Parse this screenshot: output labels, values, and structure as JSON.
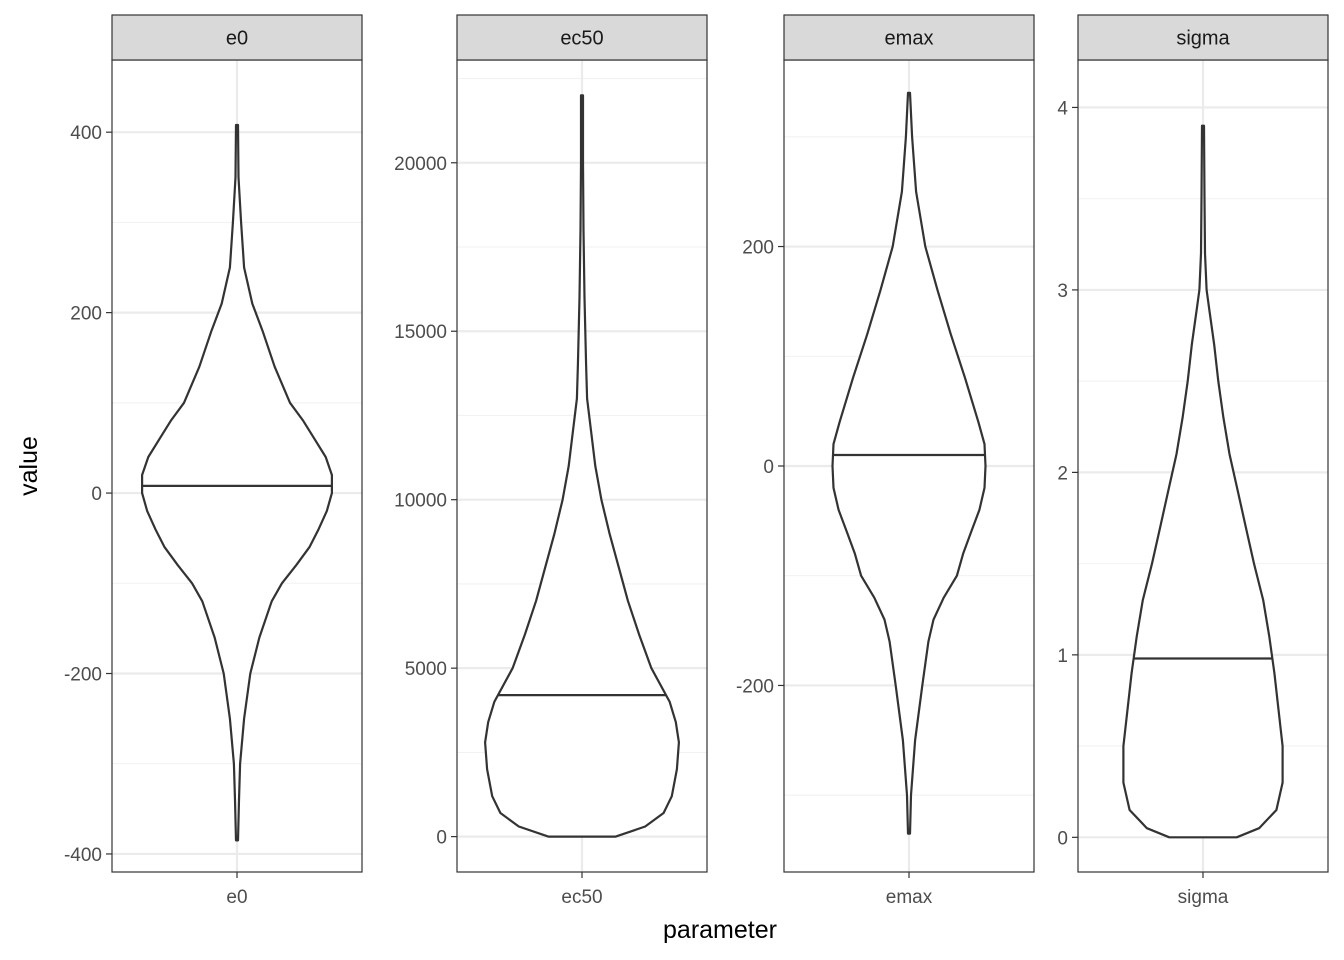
{
  "chart_data": {
    "type": "violin",
    "xlabel": "parameter",
    "ylabel": "value",
    "grid": true,
    "panels": [
      {
        "strip": "e0",
        "x_category": "e0",
        "ylim": [
          -420,
          480
        ],
        "yticks": [
          -400,
          -200,
          0,
          200,
          400
        ],
        "ytick_labels": [
          "-400",
          "-200",
          "0",
          "200",
          "400"
        ],
        "median": 8,
        "range": [
          -385,
          408
        ],
        "density_profile": [
          [
            -385,
            0.01
          ],
          [
            -340,
            0.02
          ],
          [
            -300,
            0.03
          ],
          [
            -250,
            0.07
          ],
          [
            -200,
            0.13
          ],
          [
            -160,
            0.22
          ],
          [
            -120,
            0.34
          ],
          [
            -100,
            0.44
          ],
          [
            -80,
            0.58
          ],
          [
            -60,
            0.71
          ],
          [
            -40,
            0.8
          ],
          [
            -20,
            0.88
          ],
          [
            0,
            0.93
          ],
          [
            20,
            0.93
          ],
          [
            40,
            0.87
          ],
          [
            60,
            0.76
          ],
          [
            80,
            0.65
          ],
          [
            100,
            0.52
          ],
          [
            140,
            0.37
          ],
          [
            180,
            0.25
          ],
          [
            210,
            0.15
          ],
          [
            250,
            0.07
          ],
          [
            300,
            0.04
          ],
          [
            350,
            0.015
          ],
          [
            408,
            0.01
          ]
        ]
      },
      {
        "strip": "ec50",
        "x_category": "ec50",
        "ylim": [
          -1050,
          23050
        ],
        "yticks": [
          0,
          5000,
          10000,
          15000,
          20000
        ],
        "ytick_labels": [
          "0",
          "5000",
          "10000",
          "15000",
          "20000"
        ],
        "median": 4200,
        "range": [
          0,
          22000
        ],
        "density_profile": [
          [
            0,
            0.33
          ],
          [
            300,
            0.62
          ],
          [
            700,
            0.8
          ],
          [
            1200,
            0.88
          ],
          [
            2000,
            0.93
          ],
          [
            2800,
            0.95
          ],
          [
            3400,
            0.92
          ],
          [
            4000,
            0.86
          ],
          [
            5000,
            0.68
          ],
          [
            6000,
            0.56
          ],
          [
            7000,
            0.45
          ],
          [
            8000,
            0.36
          ],
          [
            9000,
            0.27
          ],
          [
            10000,
            0.19
          ],
          [
            11000,
            0.13
          ],
          [
            12000,
            0.09
          ],
          [
            13000,
            0.05
          ],
          [
            14000,
            0.04
          ],
          [
            16000,
            0.025
          ],
          [
            18000,
            0.015
          ],
          [
            20000,
            0.01
          ],
          [
            22000,
            0.01
          ]
        ]
      },
      {
        "strip": "emax",
        "x_category": "emax",
        "ylim": [
          -370,
          370
        ],
        "yticks": [
          -200,
          0,
          200
        ],
        "ytick_labels": [
          "-200",
          "0",
          "200"
        ],
        "median": 10,
        "range": [
          -335,
          340
        ],
        "density_profile": [
          [
            -335,
            0.01
          ],
          [
            -300,
            0.02
          ],
          [
            -250,
            0.06
          ],
          [
            -200,
            0.13
          ],
          [
            -160,
            0.19
          ],
          [
            -140,
            0.24
          ],
          [
            -120,
            0.34
          ],
          [
            -100,
            0.47
          ],
          [
            -80,
            0.53
          ],
          [
            -60,
            0.61
          ],
          [
            -40,
            0.69
          ],
          [
            -20,
            0.74
          ],
          [
            0,
            0.75
          ],
          [
            20,
            0.74
          ],
          [
            40,
            0.68
          ],
          [
            80,
            0.55
          ],
          [
            120,
            0.41
          ],
          [
            160,
            0.28
          ],
          [
            200,
            0.16
          ],
          [
            250,
            0.07
          ],
          [
            300,
            0.03
          ],
          [
            340,
            0.01
          ]
        ]
      },
      {
        "strip": "sigma",
        "x_category": "sigma",
        "ylim": [
          -0.19,
          4.26
        ],
        "yticks": [
          0,
          1,
          2,
          3,
          4
        ],
        "ytick_labels": [
          "0",
          "1",
          "2",
          "3",
          "4"
        ],
        "median": 0.98,
        "range": [
          0,
          3.9
        ],
        "density_profile": [
          [
            0,
            0.33
          ],
          [
            0.05,
            0.55
          ],
          [
            0.15,
            0.72
          ],
          [
            0.3,
            0.78
          ],
          [
            0.5,
            0.78
          ],
          [
            0.7,
            0.74
          ],
          [
            0.9,
            0.7
          ],
          [
            1.1,
            0.65
          ],
          [
            1.3,
            0.59
          ],
          [
            1.5,
            0.5
          ],
          [
            1.7,
            0.42
          ],
          [
            1.9,
            0.34
          ],
          [
            2.1,
            0.26
          ],
          [
            2.3,
            0.2
          ],
          [
            2.5,
            0.15
          ],
          [
            2.7,
            0.11
          ],
          [
            2.9,
            0.06
          ],
          [
            3.0,
            0.035
          ],
          [
            3.2,
            0.02
          ],
          [
            3.5,
            0.015
          ],
          [
            3.9,
            0.01
          ]
        ]
      }
    ]
  },
  "colors": {
    "strip_fill": "#d9d9d9",
    "panel_border": "#333333",
    "grid_major": "#ebebeb",
    "grid_minor": "#f2f2f2",
    "violin_stroke": "#333333",
    "tick_label": "#4d4d4d"
  }
}
